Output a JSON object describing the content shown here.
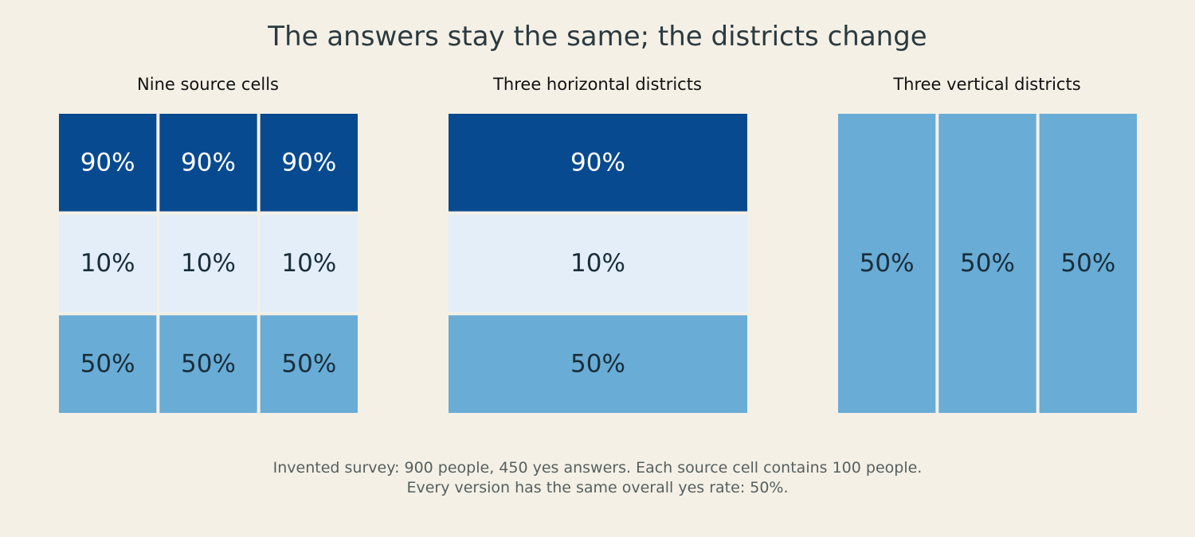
{
  "title": "The answers stay the same; the districts change",
  "footnote": {
    "line1": "Invented survey: 900 people, 450 yes answers. Each source cell contains 100 people.",
    "line2": "Every version has the same overall yes rate: 50%."
  },
  "colors": {
    "background": "#f4f0e6",
    "high": "#084a90",
    "low": "#e3eef8",
    "mid": "#69acd6",
    "text_light": "#ffffff",
    "text_dark": "#1a2e3a"
  },
  "chart_data": [
    {
      "type": "heatmap",
      "title": "Nine source cells",
      "rows": 3,
      "cols": 3,
      "values": [
        [
          90,
          90,
          90
        ],
        [
          10,
          10,
          10
        ],
        [
          50,
          50,
          50
        ]
      ],
      "unit": "%"
    },
    {
      "type": "heatmap",
      "title": "Three horizontal districts",
      "rows": 3,
      "cols": 1,
      "values": [
        [
          90
        ],
        [
          10
        ],
        [
          50
        ]
      ],
      "unit": "%"
    },
    {
      "type": "heatmap",
      "title": "Three vertical districts",
      "rows": 1,
      "cols": 3,
      "values": [
        [
          50,
          50,
          50
        ]
      ],
      "unit": "%"
    }
  ]
}
